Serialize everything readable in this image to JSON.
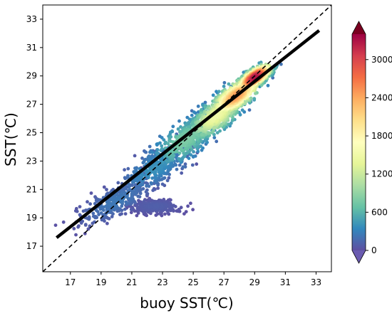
{
  "chart_data": {
    "type": "scatter",
    "subtype": "density-scatter",
    "title": "",
    "xlabel": "buoy  SST(℃)",
    "ylabel": "SST(℃)",
    "xlim": [
      15.2,
      34.0
    ],
    "ylim": [
      15.2,
      34.0
    ],
    "xticks": [
      17,
      19,
      21,
      23,
      25,
      27,
      29,
      31,
      33
    ],
    "yticks": [
      17,
      19,
      21,
      23,
      25,
      27,
      29,
      31,
      33
    ],
    "grid": false,
    "reference_line": {
      "label": "",
      "style": "dashed",
      "color": "#000000",
      "slope": 1,
      "intercept": 0
    },
    "fit_line": {
      "style": "solid",
      "color": "#000000",
      "x": [
        16.1,
        33.2
      ],
      "y": [
        17.6,
        32.2
      ]
    },
    "density_clusters": [
      {
        "x": 29.0,
        "y": 28.9,
        "sx": 0.9,
        "sy": 0.35,
        "rot": 38,
        "level": 3300
      },
      {
        "x": 27.8,
        "y": 27.6,
        "sx": 1.4,
        "sy": 0.55,
        "rot": 40,
        "level": 2500
      },
      {
        "x": 26.5,
        "y": 26.2,
        "sx": 1.6,
        "sy": 0.7,
        "rot": 42,
        "level": 1500
      },
      {
        "x": 24.5,
        "y": 24.5,
        "sx": 2.0,
        "sy": 0.9,
        "rot": 40,
        "level": 800
      },
      {
        "x": 22.5,
        "y": 22.5,
        "sx": 1.8,
        "sy": 0.8,
        "rot": 35,
        "level": 400
      },
      {
        "x": 20.0,
        "y": 20.2,
        "sx": 2.0,
        "sy": 0.7,
        "rot": 30,
        "level": 250
      },
      {
        "x": 22.5,
        "y": 19.8,
        "sx": 1.2,
        "sy": 0.35,
        "rot": 0,
        "level": 100
      }
    ],
    "colorbar": {
      "ticks": [
        0,
        600,
        1200,
        1800,
        2400,
        3000
      ],
      "range": [
        0,
        3400
      ],
      "extend": "both",
      "colors": [
        "#5e4fa2",
        "#3288bd",
        "#66c2a5",
        "#abdda4",
        "#e6f598",
        "#ffffbf",
        "#fee08b",
        "#fdae61",
        "#f46d43",
        "#d53e4f",
        "#9e0142"
      ],
      "extend_low_color": "#6a5bb0",
      "extend_high_color": "#7a0020"
    }
  }
}
